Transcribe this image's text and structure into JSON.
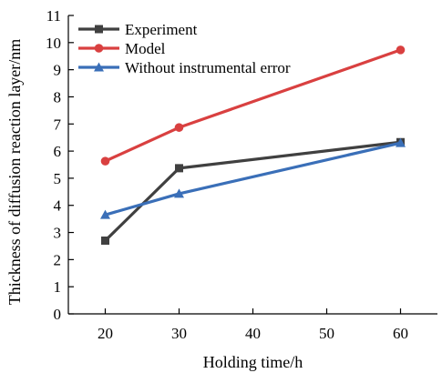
{
  "chart_data": {
    "type": "line",
    "xlabel": "Holding time/h",
    "ylabel": "Thickness of diffusion reaction layer/nm",
    "xlim": [
      15,
      65
    ],
    "ylim": [
      0,
      11
    ],
    "xticks": [
      20,
      30,
      40,
      50,
      60
    ],
    "yticks": [
      0,
      1,
      2,
      3,
      4,
      5,
      6,
      7,
      8,
      9,
      10,
      11
    ],
    "grid": false,
    "legend_position": "top-left",
    "series": [
      {
        "name": "Experiment",
        "color": "#404040",
        "marker": "square",
        "x": [
          20,
          30,
          60
        ],
        "y": [
          2.7,
          5.37,
          6.33
        ]
      },
      {
        "name": "Model",
        "color": "#d94040",
        "marker": "circle",
        "x": [
          20,
          30,
          60
        ],
        "y": [
          5.63,
          6.87,
          9.73
        ]
      },
      {
        "name": "Without instrumental error",
        "color": "#3a6fb8",
        "marker": "triangle",
        "x": [
          20,
          30,
          60
        ],
        "y": [
          3.65,
          4.43,
          6.3
        ]
      }
    ]
  }
}
